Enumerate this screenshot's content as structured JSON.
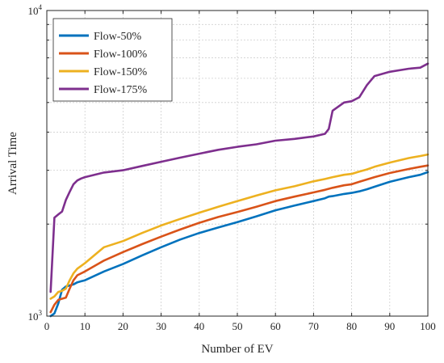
{
  "chart_data": {
    "type": "line",
    "title": "",
    "xlabel": "Number of EV",
    "ylabel": "Arrival Time",
    "xlim": [
      0,
      100
    ],
    "ylim": [
      1000,
      10000
    ],
    "y_scale": "log",
    "grid": true,
    "legend_position": "top-left",
    "x_ticks": [
      0,
      10,
      20,
      30,
      40,
      50,
      60,
      70,
      80,
      90,
      100
    ],
    "x_tick_labels": [
      "0",
      "10",
      "20",
      "30",
      "40",
      "50",
      "60",
      "70",
      "80",
      "90",
      "100"
    ],
    "y_tick_labels": [
      {
        "base": "10",
        "exp": "3"
      },
      {
        "base": "10",
        "exp": "4"
      }
    ],
    "x": [
      1,
      2,
      3,
      4,
      5,
      6,
      7,
      8,
      9,
      10,
      15,
      20,
      25,
      30,
      35,
      40,
      45,
      50,
      55,
      60,
      65,
      70,
      73,
      74,
      75,
      78,
      80,
      82,
      84,
      86,
      90,
      95,
      98,
      100
    ],
    "series": [
      {
        "name": "Flow-50%",
        "color": "#0072BD",
        "values": [
          1000,
          1020,
          1100,
          1220,
          1250,
          1260,
          1270,
          1290,
          1300,
          1310,
          1400,
          1480,
          1580,
          1680,
          1780,
          1870,
          1950,
          2030,
          2120,
          2220,
          2300,
          2380,
          2430,
          2460,
          2470,
          2510,
          2530,
          2560,
          2600,
          2650,
          2750,
          2850,
          2900,
          2960
        ]
      },
      {
        "name": "Flow-100%",
        "color": "#D95319",
        "values": [
          1030,
          1090,
          1130,
          1140,
          1150,
          1230,
          1310,
          1360,
          1380,
          1400,
          1520,
          1620,
          1720,
          1820,
          1920,
          2020,
          2110,
          2190,
          2280,
          2380,
          2460,
          2540,
          2590,
          2610,
          2630,
          2680,
          2700,
          2750,
          2800,
          2850,
          2940,
          3030,
          3080,
          3110
        ]
      },
      {
        "name": "Flow-150%",
        "color": "#EDB120",
        "values": [
          1140,
          1160,
          1200,
          1210,
          1230,
          1310,
          1380,
          1430,
          1460,
          1490,
          1680,
          1760,
          1870,
          1980,
          2080,
          2180,
          2280,
          2380,
          2480,
          2580,
          2660,
          2760,
          2810,
          2830,
          2850,
          2900,
          2920,
          2970,
          3020,
          3080,
          3180,
          3290,
          3340,
          3380
        ]
      },
      {
        "name": "Flow-175%",
        "color": "#7E2F8E",
        "values": [
          1200,
          2100,
          2150,
          2200,
          2400,
          2550,
          2700,
          2780,
          2820,
          2850,
          2950,
          3000,
          3100,
          3200,
          3300,
          3400,
          3500,
          3580,
          3650,
          3750,
          3800,
          3870,
          3950,
          4100,
          4700,
          5000,
          5050,
          5200,
          5700,
          6100,
          6300,
          6450,
          6500,
          6700
        ]
      }
    ]
  }
}
